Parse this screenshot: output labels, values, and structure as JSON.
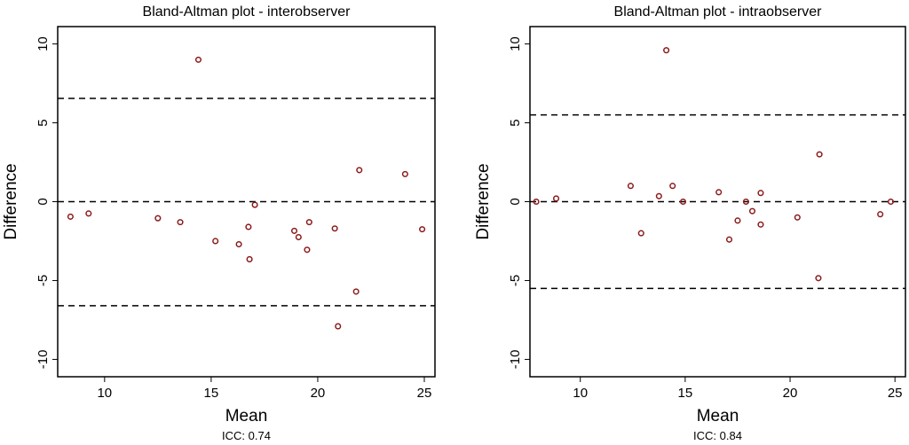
{
  "chart_data": [
    {
      "type": "scatter",
      "title": "Bland-Altman plot - interobserver",
      "xlabel": "Mean",
      "ylabel": "Difference",
      "note": "ICC: 0.74",
      "xlim": [
        7.8,
        25.5
      ],
      "ylim": [
        -11.1,
        11.1
      ],
      "xticks": [
        10,
        15,
        20,
        25
      ],
      "yticks": [
        -10,
        -5,
        0,
        5,
        10
      ],
      "reference_lines": [
        6.55,
        0,
        -6.6
      ],
      "marker_color": "#8b1a1a",
      "points": [
        [
          8.4,
          -0.95
        ],
        [
          9.25,
          -0.75
        ],
        [
          12.5,
          -1.05
        ],
        [
          13.55,
          -1.3
        ],
        [
          14.4,
          9.0
        ],
        [
          15.2,
          -2.5
        ],
        [
          16.3,
          -2.7
        ],
        [
          16.75,
          -1.6
        ],
        [
          16.8,
          -3.65
        ],
        [
          17.05,
          -0.2
        ],
        [
          18.9,
          -1.85
        ],
        [
          19.1,
          -2.25
        ],
        [
          19.5,
          -3.05
        ],
        [
          19.6,
          -1.3
        ],
        [
          20.8,
          -1.7
        ],
        [
          20.95,
          -7.9
        ],
        [
          21.8,
          -5.7
        ],
        [
          21.95,
          2.0
        ],
        [
          24.1,
          1.75
        ],
        [
          24.9,
          -1.75
        ]
      ]
    },
    {
      "type": "scatter",
      "title": "Bland-Altman plot - intraobserver",
      "xlabel": "Mean",
      "ylabel": "Difference",
      "note": "ICC: 0.84",
      "xlim": [
        7.6,
        25.5
      ],
      "ylim": [
        -11.1,
        11.1
      ],
      "xticks": [
        10,
        15,
        20,
        25
      ],
      "yticks": [
        -10,
        -5,
        0,
        5,
        10
      ],
      "reference_lines": [
        5.5,
        0,
        -5.5
      ],
      "marker_color": "#8b1a1a",
      "points": [
        [
          7.9,
          0
        ],
        [
          8.85,
          0.2
        ],
        [
          12.4,
          1.0
        ],
        [
          12.9,
          -2.0
        ],
        [
          13.75,
          0.35
        ],
        [
          14.4,
          1.0
        ],
        [
          14.1,
          9.6
        ],
        [
          14.9,
          0
        ],
        [
          16.6,
          0.6
        ],
        [
          17.1,
          -2.4
        ],
        [
          17.5,
          -1.2
        ],
        [
          17.9,
          0
        ],
        [
          18.2,
          -0.6
        ],
        [
          18.6,
          0.55
        ],
        [
          18.6,
          -1.45
        ],
        [
          20.35,
          -1.0
        ],
        [
          21.4,
          3.0
        ],
        [
          21.35,
          -4.85
        ],
        [
          24.3,
          -0.8
        ],
        [
          24.8,
          0
        ]
      ]
    }
  ]
}
